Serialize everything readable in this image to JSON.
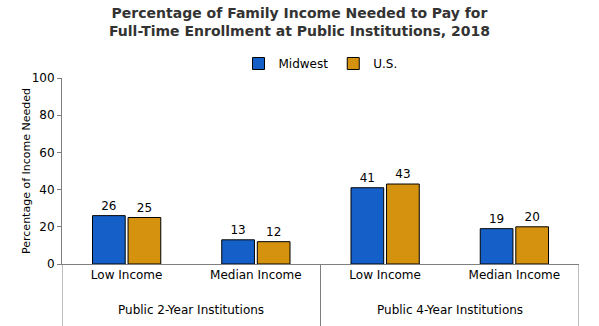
{
  "chart_data": {
    "type": "bar",
    "title": "Percentage of Family Income Needed to Pay for Full-Time Enrollment at Public Institutions, 2018",
    "y_label": "Percentage of Income Needed",
    "categories": [
      "Low Income",
      "Median Income",
      "Low Income",
      "Median Income"
    ],
    "category_groups": [
      "Public 2-Year Institutions",
      "Public 2-Year Institutions",
      "Public 4-Year Institutions",
      "Public 4-Year Institutions"
    ],
    "series": [
      {
        "name": "Midwest",
        "color": "#1560c8",
        "values": [
          26,
          13,
          41,
          19
        ]
      },
      {
        "name": "U.S.",
        "color": "#d4920f",
        "values": [
          25,
          12,
          43,
          20
        ]
      }
    ],
    "ylim": [
      0,
      100
    ],
    "yticks": [
      0,
      20,
      40,
      60,
      80,
      100
    ],
    "grid": false,
    "legend": "top",
    "data_labels": true
  }
}
